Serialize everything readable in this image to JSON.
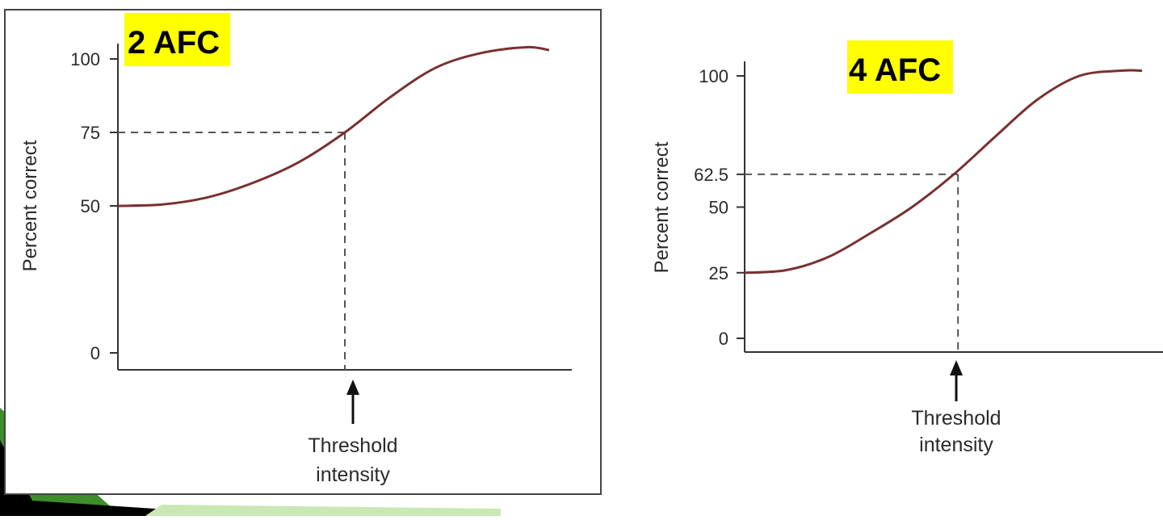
{
  "colors": {
    "curve": "#7a3030",
    "axis": "#333333",
    "guide": "#555555",
    "highlight": "#ffff00",
    "frame": "#444444",
    "slide_green_dark": "#3e8e2c",
    "slide_green_light": "#c9e8b4",
    "slide_black": "#000000"
  },
  "chart_data": [
    {
      "type": "line",
      "title": "2 AFC",
      "ylabel": "Percent correct",
      "xlabel": "",
      "ylim": [
        0,
        100
      ],
      "yticks": [
        0,
        50,
        75,
        100
      ],
      "ytick_labels": [
        "0",
        "50",
        "75",
        "100"
      ],
      "curve": {
        "kind": "psychometric",
        "x": [
          0,
          0.1,
          0.2,
          0.3,
          0.4,
          0.5,
          0.6,
          0.7,
          0.8,
          0.9,
          0.95
        ],
        "y": [
          50,
          50.5,
          53,
          58,
          65,
          75,
          87,
          97,
          102,
          104,
          103
        ]
      },
      "threshold": {
        "percent": 75,
        "x": 0.5
      },
      "annotation": [
        "Threshold",
        "intensity"
      ],
      "grid": false,
      "legend": "none"
    },
    {
      "type": "line",
      "title": "4 AFC",
      "ylabel": "Percent correct",
      "xlabel": "",
      "ylim": [
        0,
        100
      ],
      "yticks": [
        0,
        25,
        50,
        62.5,
        100
      ],
      "ytick_labels": [
        "0",
        "25",
        "50",
        "62.5",
        "100"
      ],
      "curve": {
        "kind": "psychometric",
        "x": [
          0,
          0.1,
          0.2,
          0.3,
          0.4,
          0.5,
          0.6,
          0.7,
          0.8,
          0.9,
          0.95
        ],
        "y": [
          25,
          26,
          31,
          40,
          50,
          62.5,
          77,
          91,
          100,
          102,
          102
        ]
      },
      "threshold": {
        "percent": 62.5,
        "x": 0.51
      },
      "annotation": [
        "Threshold",
        "intensity"
      ],
      "grid": false,
      "legend": "none"
    }
  ]
}
